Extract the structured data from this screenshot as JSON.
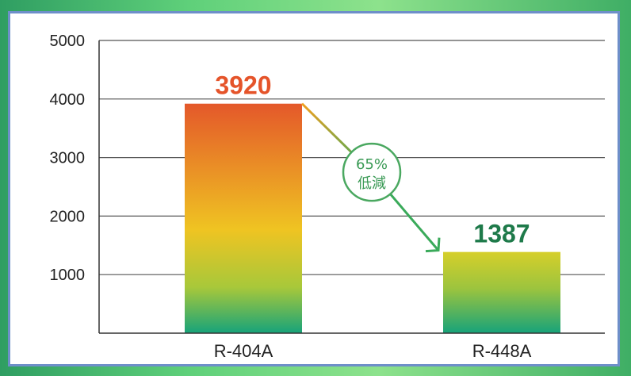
{
  "chart_data": {
    "type": "bar",
    "categories": [
      "R-404A",
      "R-448A"
    ],
    "values": [
      3920,
      1387
    ],
    "data_labels": [
      "3920",
      "1387"
    ],
    "ylim": [
      0,
      5000
    ],
    "yticks": [
      "1000",
      "2000",
      "3000",
      "4000",
      "5000"
    ],
    "annotation": {
      "line1": "65%",
      "line2": "低減"
    },
    "grid": true,
    "colors": {
      "bar_top_404": "#e4582a",
      "bar_mid": "#efc422",
      "bar_bottom": "#17a37a",
      "label_404": "#e5542a",
      "label_448": "#1e7a4a",
      "badge": "#3a9a55"
    }
  }
}
